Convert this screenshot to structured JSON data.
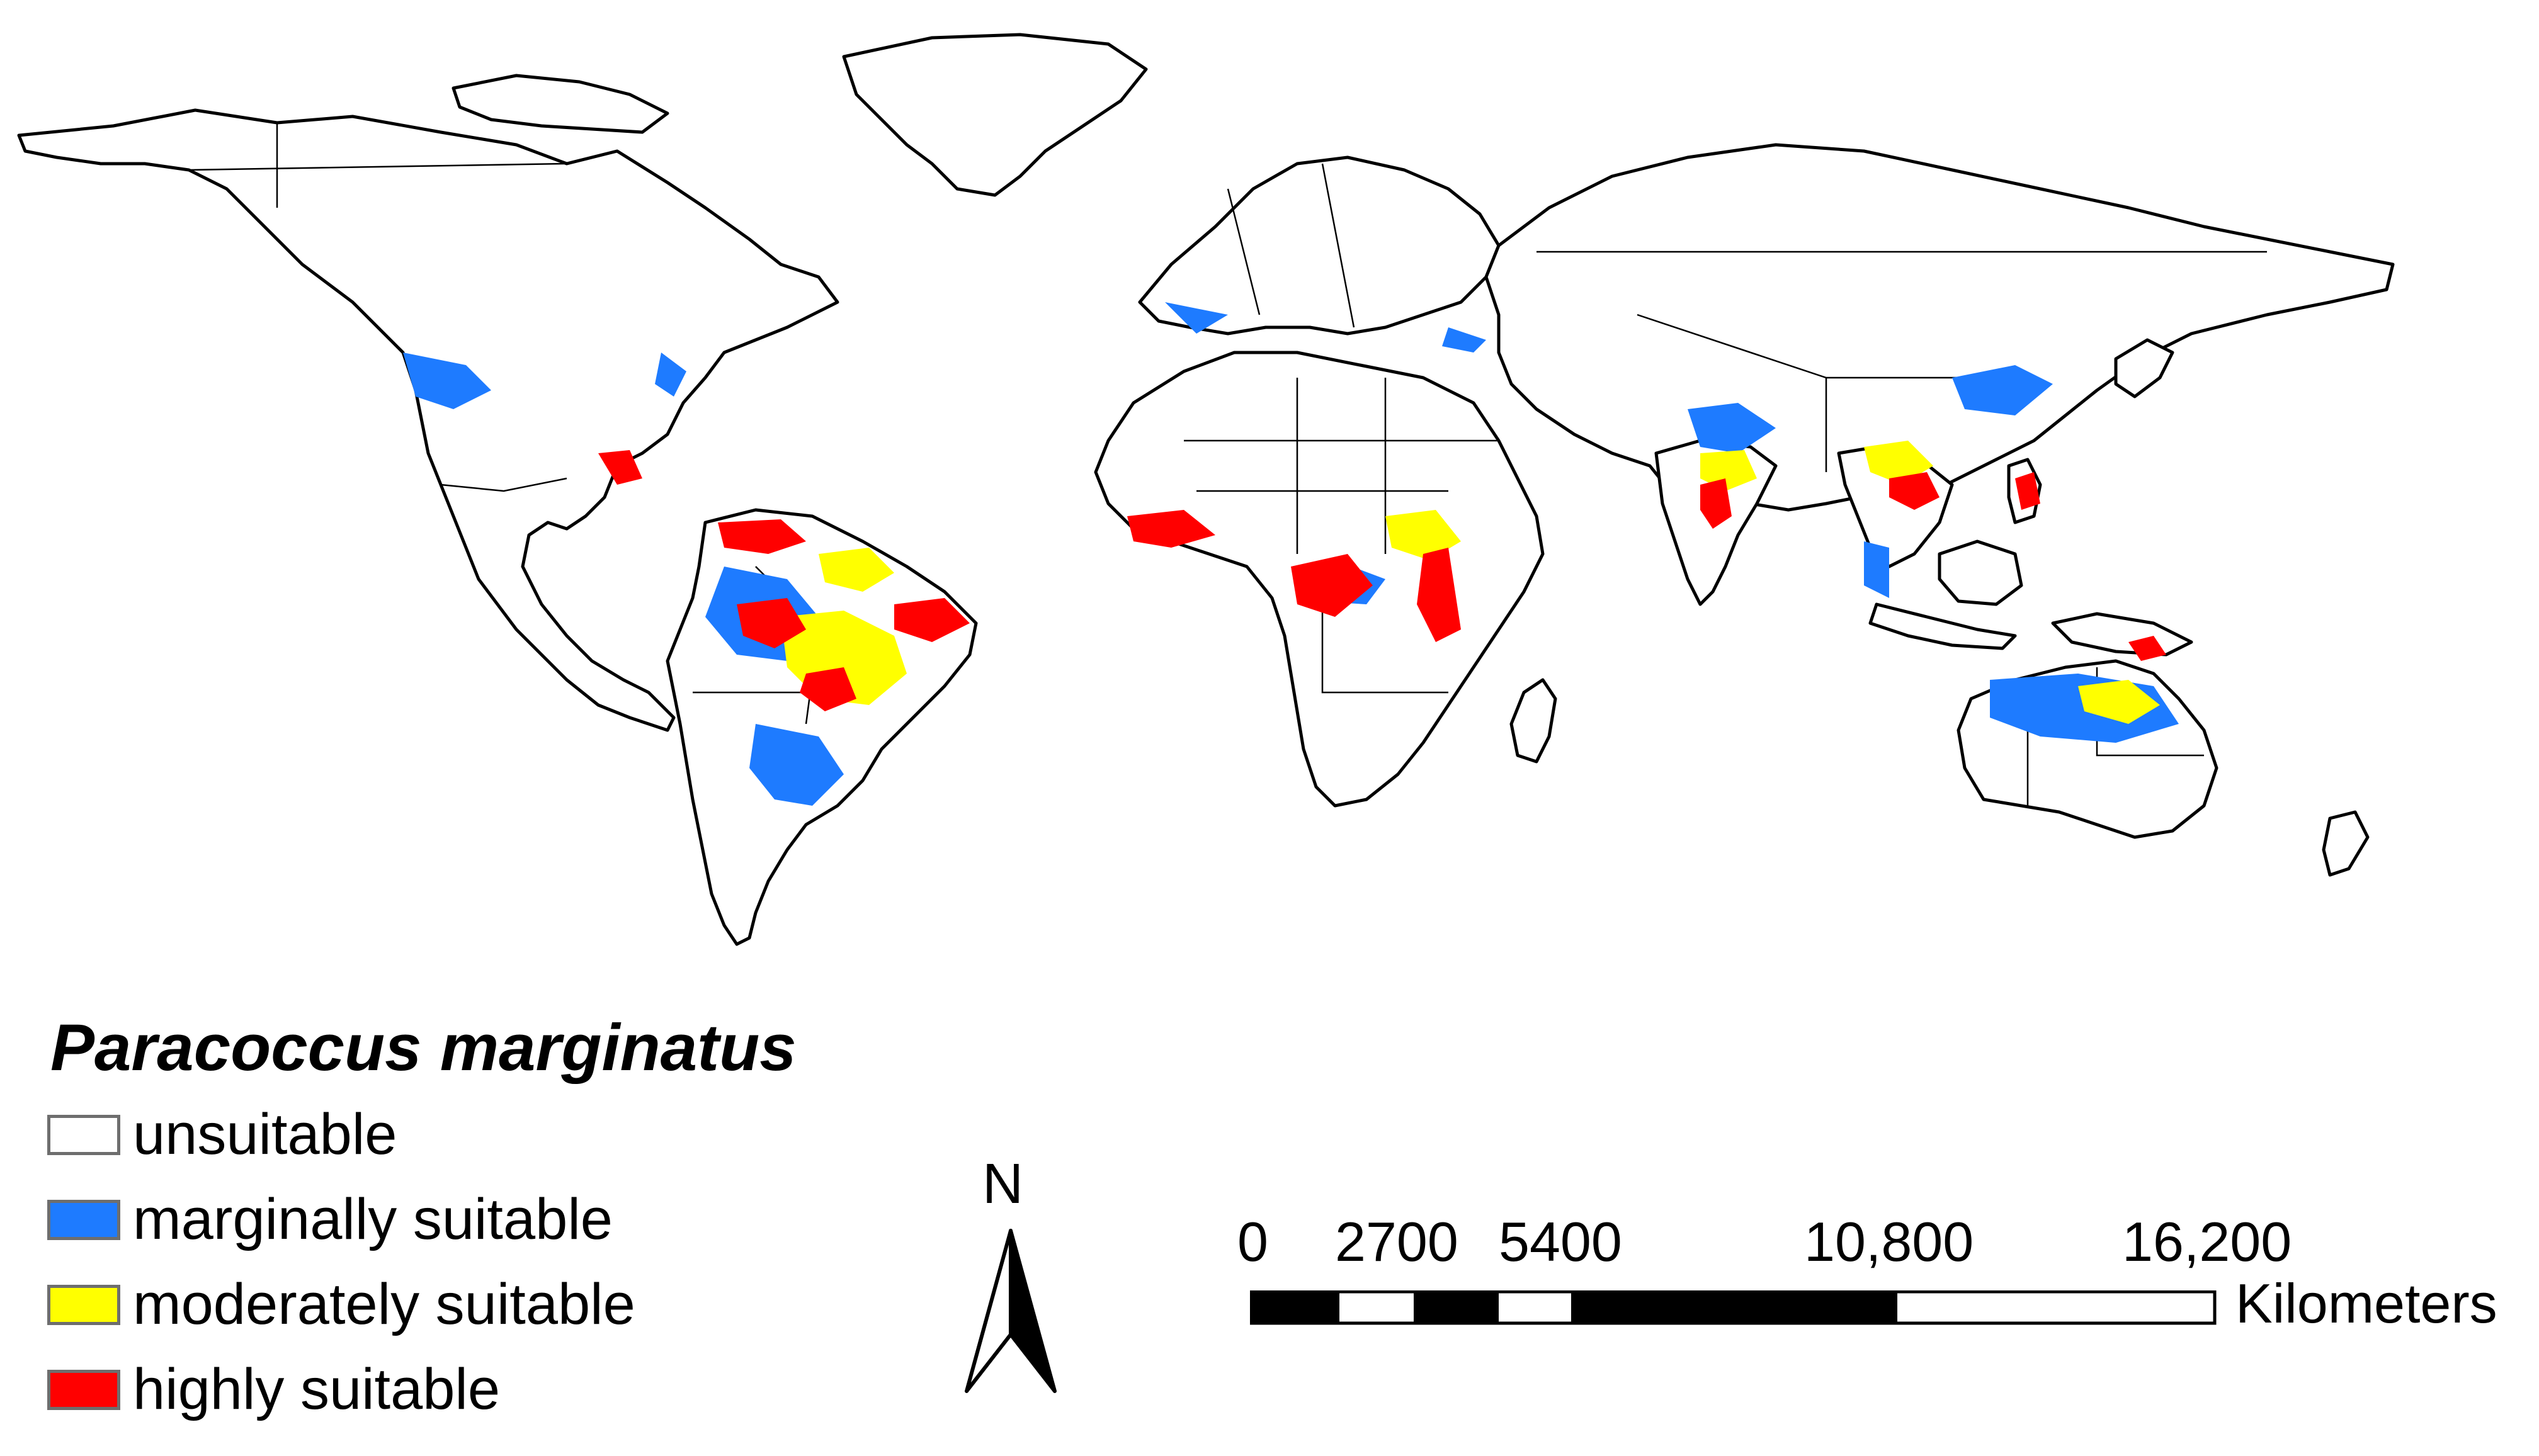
{
  "map": {
    "title": "Paracoccus marginatus",
    "legend": [
      {
        "label": "unsuitable",
        "color": "#ffffff",
        "key": "unsuitable"
      },
      {
        "label": "marginally suitable",
        "color": "#1e7bff",
        "key": "marginal"
      },
      {
        "label": "moderately suitable",
        "color": "#ffff00",
        "key": "moderate"
      },
      {
        "label": "highly suitable",
        "color": "#ff0000",
        "key": "high"
      }
    ],
    "north_arrow": {
      "label": "N"
    },
    "scale_bar": {
      "ticks": [
        "0",
        "2700",
        "5400",
        "10,800",
        "16,200"
      ],
      "unit": "Kilometers"
    }
  }
}
